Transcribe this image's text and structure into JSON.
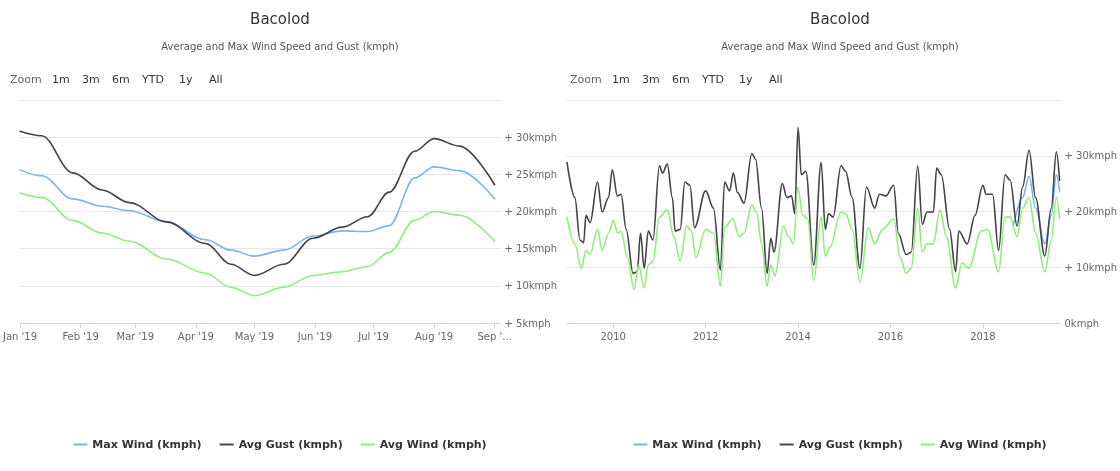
{
  "chart_data": [
    {
      "type": "line",
      "title": "Bacolod",
      "subtitle": "Average and Max Wind Speed and Gust (kmph)",
      "annotations": [
        "Zoom",
        "1m",
        "3m",
        "6m",
        "YTD",
        "1y",
        "All"
      ],
      "x": [
        "2019-01-01",
        "2019-01-12",
        "2019-01-28",
        "2019-02-12",
        "2019-02-26",
        "2019-03-17",
        "2019-04-06",
        "2019-04-19",
        "2019-05-01",
        "2019-05-16",
        "2019-05-31",
        "2019-06-15",
        "2019-06-28",
        "2019-07-09",
        "2019-07-22",
        "2019-08-01",
        "2019-08-14",
        "2019-09-01"
      ],
      "series": [
        {
          "name": "Max Wind (kmph)",
          "color": "#7cb5ec",
          "values": [
            25.6,
            24.8,
            21.7,
            20.7,
            20.1,
            18.6,
            16.2,
            14.8,
            14.0,
            14.8,
            16.7,
            17.4,
            17.3,
            18.1,
            24.5,
            26.0,
            25.5,
            21.7
          ]
        },
        {
          "name": "Avg Gust (kmph)",
          "color": "#434348",
          "values": [
            30.8,
            30.2,
            25.2,
            22.9,
            21.2,
            18.6,
            15.7,
            12.9,
            11.4,
            12.9,
            16.4,
            17.9,
            19.3,
            22.6,
            28.1,
            29.8,
            28.8,
            23.6
          ]
        },
        {
          "name": "Avg Wind (kmph)",
          "color": "#90ed7d",
          "values": [
            22.5,
            21.9,
            18.8,
            17.1,
            16.0,
            13.6,
            11.7,
            9.8,
            8.7,
            9.8,
            11.4,
            11.9,
            12.6,
            14.5,
            18.8,
            20.0,
            19.5,
            16.0
          ]
        }
      ],
      "xlim": [
        "2019-01-01",
        "2019-09-04"
      ],
      "xticks": [
        {
          "value": "2019-01-01",
          "label": "Jan '19"
        },
        {
          "value": "2019-02-01",
          "label": "Feb '19"
        },
        {
          "value": "2019-03-01",
          "label": "Mar '19"
        },
        {
          "value": "2019-04-01",
          "label": "Apr '19"
        },
        {
          "value": "2019-05-01",
          "label": "May '19"
        },
        {
          "value": "2019-06-01",
          "label": "Jun '19"
        },
        {
          "value": "2019-07-01",
          "label": "Jul '19"
        },
        {
          "value": "2019-08-01",
          "label": "Aug '19"
        },
        {
          "value": "2019-09-01",
          "label": "Sep '..."
        }
      ],
      "ylim": [
        5,
        35
      ],
      "yticks": [
        {
          "value": 5,
          "label": "+ 5kmph"
        },
        {
          "value": 10,
          "label": "+ 10kmph"
        },
        {
          "value": 15,
          "label": "+ 15kmph"
        },
        {
          "value": 20,
          "label": "+ 20kmph"
        },
        {
          "value": 25,
          "label": "+ 25kmph"
        },
        {
          "value": 30,
          "label": "+ 30kmph"
        },
        {
          "value": 35,
          "label": null
        }
      ],
      "grid": "y",
      "legend": "bottom",
      "marker": "none"
    },
    {
      "type": "line",
      "title": "Bacolod",
      "subtitle": "Average and Max Wind Speed and Gust (kmph)",
      "annotations": [
        "Zoom",
        "1m",
        "3m",
        "6m",
        "YTD",
        "1y",
        "All"
      ],
      "series": [
        {
          "name": "Max Wind (kmph)",
          "color": "#7cb5ec",
          "x": [
            2018.66,
            2018.86,
            2019.0,
            2019.14,
            2019.34,
            2019.48,
            2019.59,
            2019.66
          ],
          "values": [
            17.4,
            22.5,
            26.3,
            20.6,
            14.2,
            19.3,
            26.6,
            23.7
          ]
        },
        {
          "name": "Avg Gust (kmph)",
          "color": "#434348",
          "x": [
            2009.0,
            2009.17,
            2009.28,
            2009.36,
            2009.41,
            2009.5,
            2009.66,
            2009.76,
            2009.9,
            2009.98,
            2010.09,
            2010.17,
            2010.28,
            2010.43,
            2010.52,
            2010.59,
            2010.67,
            2010.76,
            2010.86,
            2011.0,
            2011.07,
            2011.17,
            2011.28,
            2011.34,
            2011.45,
            2011.55,
            2011.66,
            2011.76,
            2012.0,
            2012.17,
            2012.32,
            2012.41,
            2012.52,
            2012.6,
            2012.69,
            2012.83,
            2013.0,
            2013.08,
            2013.21,
            2013.33,
            2013.41,
            2013.48,
            2013.66,
            2013.76,
            2013.86,
            2013.93,
            2014.0,
            2014.07,
            2014.17,
            2014.34,
            2014.5,
            2014.59,
            2014.66,
            2014.76,
            2014.93,
            2015.03,
            2015.17,
            2015.34,
            2015.48,
            2015.66,
            2015.76,
            2015.9,
            2016.07,
            2016.17,
            2016.34,
            2016.45,
            2016.59,
            2016.69,
            2016.79,
            2016.93,
            2017.0,
            2017.1,
            2017.28,
            2017.41,
            2017.48,
            2017.66,
            2017.83,
            2018.0,
            2018.07,
            2018.21,
            2018.34,
            2018.48,
            2018.59,
            2018.74,
            2018.86,
            2019.0,
            2019.14,
            2019.34,
            2019.48,
            2019.59,
            2019.66
          ],
          "values": [
            28.8,
            22.5,
            14.9,
            14.4,
            19.3,
            18.0,
            25.3,
            19.9,
            22.5,
            27.5,
            22.8,
            23.1,
            16.8,
            8.9,
            9.2,
            16.1,
            9.8,
            16.5,
            14.9,
            28.2,
            26.9,
            28.5,
            22.5,
            16.5,
            16.8,
            25.3,
            24.7,
            17.1,
            23.7,
            20.6,
            9.5,
            25.3,
            23.7,
            26.9,
            23.4,
            21.5,
            30.4,
            29.4,
            20.6,
            8.9,
            15.2,
            12.7,
            25.0,
            22.5,
            22.8,
            19.6,
            35.1,
            26.6,
            27.2,
            10.4,
            28.8,
            16.8,
            19.6,
            19.0,
            28.2,
            27.2,
            22.5,
            9.8,
            24.4,
            20.6,
            23.1,
            22.8,
            24.7,
            16.1,
            12.3,
            12.7,
            28.2,
            17.7,
            19.9,
            19.9,
            27.8,
            26.6,
            16.8,
            9.2,
            16.5,
            14.2,
            19.3,
            24.7,
            23.1,
            23.1,
            13.0,
            26.6,
            25.6,
            17.4,
            24.4,
            31.0,
            22.5,
            12.0,
            20.6,
            30.7,
            25.6
          ]
        },
        {
          "name": "Avg Wind (kmph)",
          "color": "#90ed7d",
          "x": [
            2009.0,
            2009.17,
            2009.31,
            2009.41,
            2009.5,
            2009.66,
            2009.76,
            2009.9,
            2010.0,
            2010.1,
            2010.17,
            2010.31,
            2010.45,
            2010.55,
            2010.67,
            2010.76,
            2010.86,
            2011.0,
            2011.17,
            2011.31,
            2011.45,
            2011.59,
            2011.69,
            2011.79,
            2012.0,
            2012.17,
            2012.32,
            2012.41,
            2012.59,
            2012.72,
            2012.83,
            2013.0,
            2013.1,
            2013.21,
            2013.33,
            2013.41,
            2013.5,
            2013.69,
            2013.79,
            2013.9,
            2014.0,
            2014.1,
            2014.21,
            2014.34,
            2014.5,
            2014.59,
            2014.69,
            2014.93,
            2015.03,
            2015.17,
            2015.34,
            2015.52,
            2015.66,
            2015.83,
            2016.07,
            2016.21,
            2016.34,
            2016.45,
            2016.59,
            2016.69,
            2016.79,
            2016.93,
            2017.07,
            2017.21,
            2017.41,
            2017.55,
            2017.69,
            2017.97,
            2018.1,
            2018.34,
            2018.48,
            2018.59,
            2018.74,
            2018.86,
            2019.0,
            2019.14,
            2019.34,
            2019.48,
            2019.59,
            2019.66
          ],
          "values": [
            19.0,
            14.2,
            9.8,
            13.0,
            12.3,
            16.8,
            13.0,
            16.1,
            18.4,
            16.1,
            16.5,
            11.7,
            6.0,
            10.4,
            6.3,
            10.4,
            11.1,
            19.0,
            20.3,
            15.5,
            11.1,
            17.4,
            16.5,
            11.7,
            16.8,
            16.1,
            6.6,
            17.1,
            18.7,
            15.5,
            16.1,
            21.2,
            19.9,
            14.2,
            6.6,
            10.4,
            8.5,
            17.4,
            15.5,
            14.2,
            24.4,
            19.3,
            18.7,
            7.6,
            19.0,
            12.0,
            13.6,
            19.9,
            19.6,
            16.8,
            7.3,
            17.1,
            14.2,
            16.8,
            18.7,
            11.7,
            8.9,
            9.8,
            20.6,
            12.7,
            14.2,
            14.2,
            20.3,
            15.5,
            6.3,
            10.8,
            9.8,
            16.5,
            16.8,
            9.2,
            19.0,
            19.0,
            15.5,
            20.6,
            22.5,
            16.1,
            9.2,
            14.9,
            22.5,
            18.7
          ]
        }
      ],
      "xlim": [
        2009.0,
        2019.68
      ],
      "xticks": [
        2010,
        2012,
        2014,
        2016,
        2018
      ],
      "ylim": [
        0,
        40
      ],
      "yticks": [
        {
          "value": 0,
          "label": "0kmph"
        },
        {
          "value": 10,
          "label": "+ 10kmph"
        },
        {
          "value": 20,
          "label": "+ 20kmph"
        },
        {
          "value": 30,
          "label": "+ 30kmph"
        },
        {
          "value": 40,
          "label": null
        }
      ],
      "grid": "y",
      "legend": "bottom",
      "marker": "none"
    }
  ]
}
